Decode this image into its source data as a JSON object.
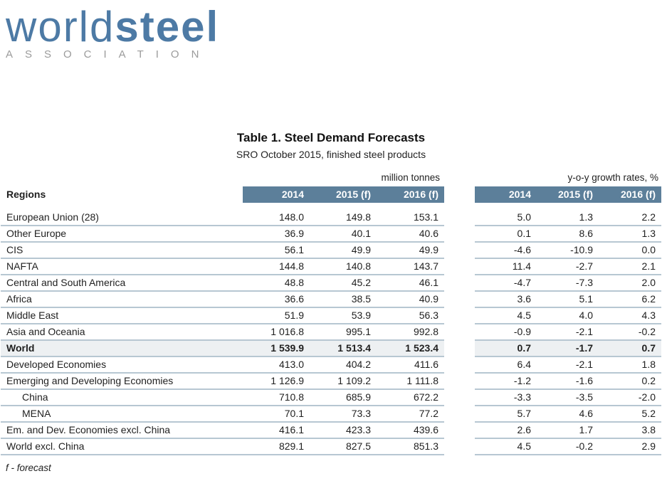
{
  "logo": {
    "word_regular": "world",
    "word_bold": "steel",
    "subtitle": "ASSOCIATION"
  },
  "title": "Table 1. Steel Demand Forecasts",
  "subtitle": "SRO October 2015, finished steel products",
  "table": {
    "regions_header": "Regions",
    "group1_label": "million tonnes",
    "group2_label": "y-o-y growth rates, %",
    "col_headers": [
      "2014",
      "2015 (f)",
      "2016 (f)"
    ],
    "rows": [
      {
        "name": "European Union (28)",
        "million_tonnes": [
          "148.0",
          "149.8",
          "153.1"
        ],
        "growth": [
          "5.0",
          "1.3",
          "2.2"
        ]
      },
      {
        "name": "Other Europe",
        "million_tonnes": [
          "36.9",
          "40.1",
          "40.6"
        ],
        "growth": [
          "0.1",
          "8.6",
          "1.3"
        ]
      },
      {
        "name": "CIS",
        "million_tonnes": [
          "56.1",
          "49.9",
          "49.9"
        ],
        "growth": [
          "-4.6",
          "-10.9",
          "0.0"
        ]
      },
      {
        "name": "NAFTA",
        "million_tonnes": [
          "144.8",
          "140.8",
          "143.7"
        ],
        "growth": [
          "11.4",
          "-2.7",
          "2.1"
        ]
      },
      {
        "name": "Central and South America",
        "million_tonnes": [
          "48.8",
          "45.2",
          "46.1"
        ],
        "growth": [
          "-4.7",
          "-7.3",
          "2.0"
        ]
      },
      {
        "name": "Africa",
        "million_tonnes": [
          "36.6",
          "38.5",
          "40.9"
        ],
        "growth": [
          "3.6",
          "5.1",
          "6.2"
        ]
      },
      {
        "name": "Middle East",
        "million_tonnes": [
          "51.9",
          "53.9",
          "56.3"
        ],
        "growth": [
          "4.5",
          "4.0",
          "4.3"
        ]
      },
      {
        "name": "Asia and Oceania",
        "million_tonnes": [
          "1 016.8",
          "995.1",
          "992.8"
        ],
        "growth": [
          "-0.9",
          "-2.1",
          "-0.2"
        ]
      },
      {
        "name": "World",
        "million_tonnes": [
          "1 539.9",
          "1 513.4",
          "1 523.4"
        ],
        "growth": [
          "0.7",
          "-1.7",
          "0.7"
        ],
        "bold": true,
        "highlight": true
      },
      {
        "name": "Developed Economies",
        "million_tonnes": [
          "413.0",
          "404.2",
          "411.6"
        ],
        "growth": [
          "6.4",
          "-2.1",
          "1.8"
        ]
      },
      {
        "name": "Emerging and Developing Economies",
        "million_tonnes": [
          "1 126.9",
          "1 109.2",
          "1 111.8"
        ],
        "growth": [
          "-1.2",
          "-1.6",
          "0.2"
        ]
      },
      {
        "name": "China",
        "million_tonnes": [
          "710.8",
          "685.9",
          "672.2"
        ],
        "growth": [
          "-3.3",
          "-3.5",
          "-2.0"
        ],
        "indent": true
      },
      {
        "name": "MENA",
        "million_tonnes": [
          "70.1",
          "73.3",
          "77.2"
        ],
        "growth": [
          "5.7",
          "4.6",
          "5.2"
        ],
        "indent": true
      },
      {
        "name": "Em. and Dev. Economies excl. China",
        "million_tonnes": [
          "416.1",
          "423.3",
          "439.6"
        ],
        "growth": [
          "2.6",
          "1.7",
          "3.8"
        ]
      },
      {
        "name": "World excl. China",
        "million_tonnes": [
          "829.1",
          "827.5",
          "851.3"
        ],
        "growth": [
          "4.5",
          "-0.2",
          "2.9"
        ]
      }
    ]
  },
  "footnote": "f - forecast",
  "colors": {
    "band_bg": "#5c7f9a",
    "row_line": "#b7c7d2",
    "highlight_bg": "#edf0f2",
    "logo_blue": "#4d7aa5",
    "logo_gray": "#9b9b9b",
    "header_text": "#ffffff"
  }
}
